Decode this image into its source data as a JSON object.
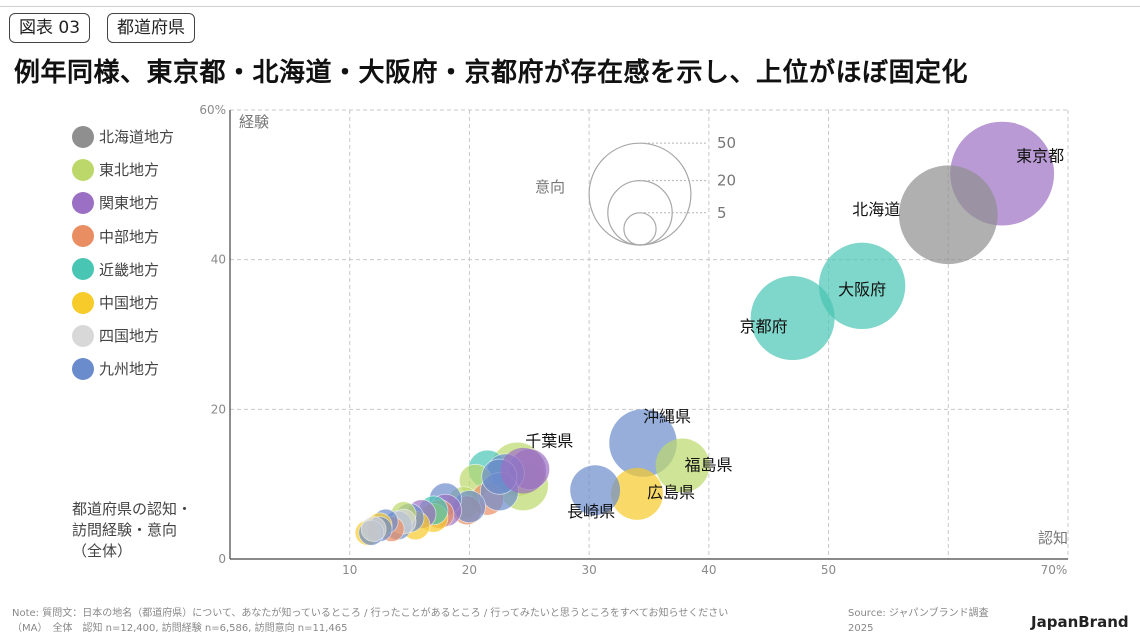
{
  "header": {
    "tag_number": "図表 03",
    "tag_category": "都道府県",
    "headline": "例年同様、東京都・北海道・大阪府・京都府が存在感を示し、上位がほぼ固定化"
  },
  "legend": {
    "items": [
      {
        "label": "北海道地方",
        "color": "#8f8f8f"
      },
      {
        "label": "東北地方",
        "color": "#bcd86b"
      },
      {
        "label": "関東地方",
        "color": "#9b6fc3"
      },
      {
        "label": "中部地方",
        "color": "#e98d63"
      },
      {
        "label": "近畿地方",
        "color": "#49c5b4"
      },
      {
        "label": "中国地方",
        "color": "#f6cb2a"
      },
      {
        "label": "四国地方",
        "color": "#d8d8d8"
      },
      {
        "label": "九州地方",
        "color": "#6b8ccc"
      }
    ]
  },
  "chart_data": {
    "type": "scatter",
    "xlabel": "認知",
    "ylabel": "経験",
    "size_label": "意向",
    "xlim": [
      0,
      70
    ],
    "ylim": [
      0,
      60
    ],
    "x_ticks": [
      "10",
      "20",
      "30",
      "40",
      "50",
      "70%"
    ],
    "y_ticks": [
      "0",
      "20",
      "40",
      "60%"
    ],
    "grid": true,
    "size_legend": [
      "50",
      "20",
      "5"
    ],
    "labeled_points": [
      {
        "name": "東京都",
        "region": "関東地方",
        "x": 64.5,
        "y": 51.5,
        "size": 52
      },
      {
        "name": "北海道",
        "region": "北海道地方",
        "x": 60.0,
        "y": 46.0,
        "size": 47
      },
      {
        "name": "大阪府",
        "region": "近畿地方",
        "x": 52.8,
        "y": 36.5,
        "size": 36
      },
      {
        "name": "京都府",
        "region": "近畿地方",
        "x": 47.0,
        "y": 32.2,
        "size": 34
      },
      {
        "name": "沖縄県",
        "region": "九州地方",
        "x": 34.5,
        "y": 15.5,
        "size": 22
      },
      {
        "name": "福島県",
        "region": "東北地方",
        "x": 37.8,
        "y": 12.5,
        "size": 14
      },
      {
        "name": "広島県",
        "region": "中国地方",
        "x": 34.0,
        "y": 8.7,
        "size": 13
      },
      {
        "name": "長崎県",
        "region": "九州地方",
        "x": 30.5,
        "y": 9.2,
        "size": 12
      },
      {
        "name": "千葉県",
        "region": "関東地方",
        "x": 24.5,
        "y": 11.8,
        "size": 10
      }
    ],
    "other_points": [
      {
        "region": "東北地方",
        "x": 24.0,
        "y": 12.0,
        "size": 14
      },
      {
        "region": "東北地方",
        "x": 24.5,
        "y": 9.8,
        "size": 12
      },
      {
        "region": "関東地方",
        "x": 25.0,
        "y": 12.0,
        "size": 8
      },
      {
        "region": "近畿地方",
        "x": 21.5,
        "y": 12.0,
        "size": 7
      },
      {
        "region": "九州地方",
        "x": 23.0,
        "y": 11.5,
        "size": 7
      },
      {
        "region": "東北地方",
        "x": 20.5,
        "y": 10.5,
        "size": 5
      },
      {
        "region": "中部地方",
        "x": 21.5,
        "y": 8.0,
        "size": 5
      },
      {
        "region": "九州地方",
        "x": 22.5,
        "y": 9.0,
        "size": 7
      },
      {
        "region": "東北地方",
        "x": 19.5,
        "y": 7.5,
        "size": 5
      },
      {
        "region": "中部地方",
        "x": 19.8,
        "y": 6.5,
        "size": 4
      },
      {
        "region": "九州地方",
        "x": 20.0,
        "y": 7.0,
        "size": 5
      },
      {
        "region": "九州地方",
        "x": 18.0,
        "y": 8.0,
        "size": 5
      },
      {
        "region": "関東地方",
        "x": 18.0,
        "y": 6.5,
        "size": 5
      },
      {
        "region": "中部地方",
        "x": 17.5,
        "y": 6.0,
        "size": 4
      },
      {
        "region": "中国地方",
        "x": 17.0,
        "y": 5.5,
        "size": 4
      },
      {
        "region": "近畿地方",
        "x": 17.0,
        "y": 6.5,
        "size": 4
      },
      {
        "region": "関東地方",
        "x": 16.0,
        "y": 6.0,
        "size": 4
      },
      {
        "region": "中国地方",
        "x": 15.5,
        "y": 4.5,
        "size": 4
      },
      {
        "region": "九州地方",
        "x": 15.0,
        "y": 5.5,
        "size": 4
      },
      {
        "region": "東北地方",
        "x": 14.5,
        "y": 6.0,
        "size": 3
      },
      {
        "region": "九州地方",
        "x": 14.0,
        "y": 4.5,
        "size": 4
      },
      {
        "region": "四国地方",
        "x": 14.5,
        "y": 5.0,
        "size": 3
      },
      {
        "region": "中部地方",
        "x": 13.5,
        "y": 4.0,
        "size": 3
      },
      {
        "region": "九州地方",
        "x": 13.0,
        "y": 5.0,
        "size": 3
      },
      {
        "region": "中国地方",
        "x": 12.5,
        "y": 4.5,
        "size": 3
      },
      {
        "region": "九州地方",
        "x": 12.5,
        "y": 4.0,
        "size": 3
      },
      {
        "region": "中国地方",
        "x": 11.5,
        "y": 3.5,
        "size": 3
      },
      {
        "region": "九州地方",
        "x": 11.8,
        "y": 3.5,
        "size": 3
      },
      {
        "region": "四国地方",
        "x": 12.0,
        "y": 4.0,
        "size": 3
      },
      {
        "region": "九州地方",
        "x": 22.5,
        "y": 11.0,
        "size": 6
      }
    ]
  },
  "notes": {
    "axis_caption": "都道府県の認知・\n訪問経験・意向\n（全体）",
    "footer_note": "Note: 質問文：日本の地名（都道府県）について、あなたが知っているところ / 行ったことがあるところ / 行ってみたいと思うところをすべてお知らせください\n（MA）　全体　認知 n=12,400, 訪問経験 n=6,586, 訪問意向 n=11,465",
    "source": "Source: ジャパンブランド調査\n2025",
    "brand": "JapanBrand"
  }
}
